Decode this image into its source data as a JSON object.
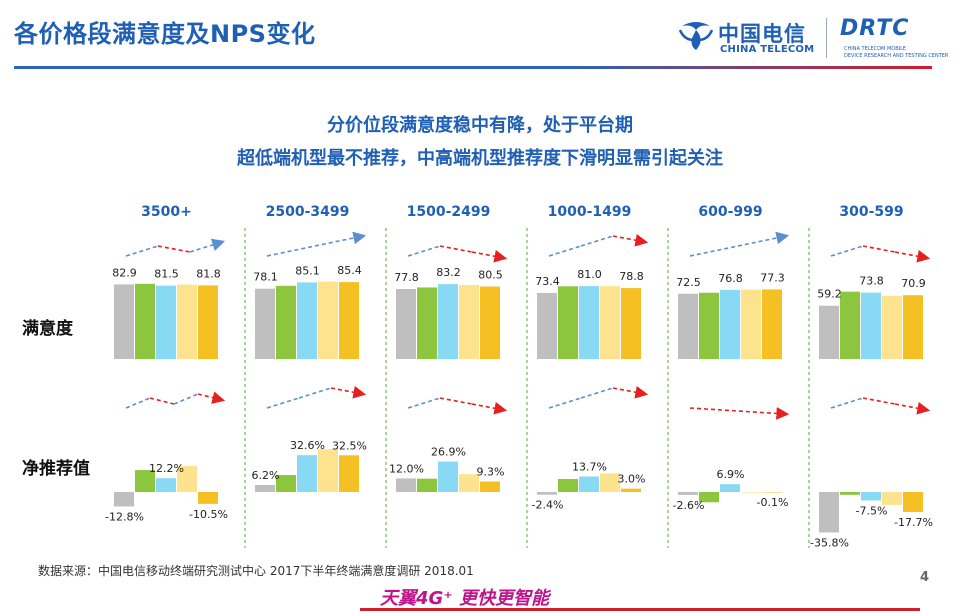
{
  "header": {
    "title": "各价格段满意度及NPS变化",
    "logo_cn": "中国电信",
    "logo_en": "CHINA TELECOM",
    "rtc_word": "DRTC",
    "rtc_line1": "CHINA TELECOM MOBILE",
    "rtc_line2": "DEVICE RESEARCH AND TESTING CENTER"
  },
  "headline": {
    "line1": "分价位段满意度稳中有降，处于平台期",
    "line2": "超低端机型最不推荐，中高端机型推荐度下滑明显需引起关注"
  },
  "footer": {
    "source": "数据来源：中国电信移动终端研究测试中心 2017下半年终端满意度调研 2018.01",
    "page": "4",
    "slogan": "天翼4G⁺ 更快更智能"
  },
  "colors": {
    "bar1": "#bfbfbf",
    "bar2": "#8cc63f",
    "bar3": "#87d9f4",
    "bar4": "#fde38d",
    "bar5": "#f5c024",
    "arrow_up": "#5b8fd1",
    "arrow_down": "#e62020",
    "divider": "#5aa63c",
    "accent": "#1f5fb4"
  },
  "chart_data": {
    "type": "bar",
    "categories": [
      "3500+",
      "2500-3499",
      "1500-2499",
      "1000-1499",
      "600-999",
      "300-599"
    ],
    "series_count": 5,
    "panels": [
      {
        "name": "满意度",
        "values": [
          [
            82.9,
            83.6,
            81.5,
            82.7,
            81.8
          ],
          [
            78.1,
            81.3,
            85.1,
            86.0,
            85.4
          ],
          [
            77.8,
            79.5,
            83.2,
            82.2,
            80.5
          ],
          [
            73.4,
            80.8,
            81.0,
            80.9,
            78.8
          ],
          [
            72.5,
            73.6,
            76.8,
            77.0,
            77.3
          ],
          [
            59.2,
            74.8,
            73.8,
            70.2,
            70.9
          ]
        ],
        "labels": [
          [
            {
              "i": 0,
              "text": "82.9"
            },
            {
              "i": 2,
              "text": "81.5"
            },
            {
              "i": 4,
              "text": "81.8"
            }
          ],
          [
            {
              "i": 0,
              "text": "78.1"
            },
            {
              "i": 2,
              "text": "85.1"
            },
            {
              "i": 4,
              "text": "85.4"
            }
          ],
          [
            {
              "i": 0,
              "text": "77.8"
            },
            {
              "i": 2,
              "text": "83.2"
            },
            {
              "i": 4,
              "text": "80.5"
            }
          ],
          [
            {
              "i": 0,
              "text": "73.4"
            },
            {
              "i": 2,
              "text": "81.0"
            },
            {
              "i": 4,
              "text": "78.8"
            }
          ],
          [
            {
              "i": 0,
              "text": "72.5"
            },
            {
              "i": 2,
              "text": "76.8"
            },
            {
              "i": 4,
              "text": "77.3"
            }
          ],
          [
            {
              "i": 0,
              "text": "59.2"
            },
            {
              "i": 2,
              "text": "73.8"
            },
            {
              "i": 4,
              "text": "70.9"
            }
          ]
        ],
        "trends": [
          [
            "up",
            "down",
            "up"
          ],
          [
            "up",
            "up"
          ],
          [
            "up",
            "down",
            "down"
          ],
          [
            "up",
            "up",
            "down"
          ],
          [
            "up",
            "up"
          ],
          [
            "up",
            "down",
            "down"
          ]
        ]
      },
      {
        "name": "净推荐值",
        "values": [
          [
            -12.8,
            19.4,
            12.2,
            23.1,
            -10.5
          ],
          [
            6.2,
            15.0,
            32.6,
            37.9,
            32.5
          ],
          [
            12.0,
            11.8,
            26.9,
            15.8,
            9.3
          ],
          [
            -2.4,
            11.5,
            13.7,
            16.5,
            3.0
          ],
          [
            -2.6,
            -9.1,
            6.9,
            -0.5,
            -0.1
          ],
          [
            -35.8,
            -2.5,
            -7.5,
            -11.4,
            -17.7
          ]
        ],
        "labels": [
          [
            {
              "i": 0,
              "text": "-12.8%"
            },
            {
              "i": 2,
              "text": "12.2%"
            },
            {
              "i": 4,
              "text": "-10.5%"
            }
          ],
          [
            {
              "i": 0,
              "text": "6.2%"
            },
            {
              "i": 2,
              "text": "32.6%"
            },
            {
              "i": 4,
              "text": "32.5%"
            }
          ],
          [
            {
              "i": 0,
              "text": "12.0%"
            },
            {
              "i": 2,
              "text": "26.9%"
            },
            {
              "i": 4,
              "text": "9.3%"
            }
          ],
          [
            {
              "i": 0,
              "text": "-2.4%"
            },
            {
              "i": 2,
              "text": "13.7%"
            },
            {
              "i": 4,
              "text": "3.0%"
            }
          ],
          [
            {
              "i": 0,
              "text": "-2.6%"
            },
            {
              "i": 2,
              "text": "6.9%"
            },
            {
              "i": 4,
              "text": "-0.1%"
            }
          ],
          [
            {
              "i": 0,
              "text": "-35.8%"
            },
            {
              "i": 2,
              "text": "-7.5%"
            },
            {
              "i": 4,
              "text": "-17.7%"
            }
          ]
        ],
        "trends": [
          [
            "up",
            "down",
            "up",
            "down"
          ],
          [
            "up",
            "up",
            "down"
          ],
          [
            "up",
            "down",
            "down"
          ],
          [
            "up",
            "up",
            "down"
          ],
          [
            "down"
          ],
          [
            "up",
            "down",
            "down"
          ]
        ]
      }
    ]
  }
}
